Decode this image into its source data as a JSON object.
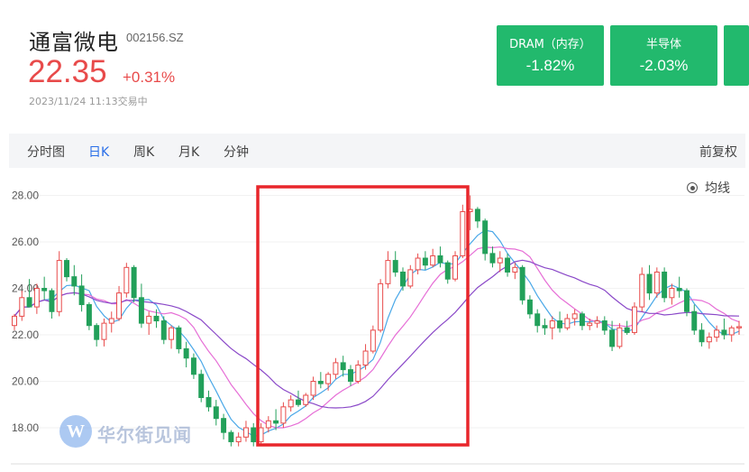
{
  "stock": {
    "name": "通富微电",
    "code": "002156.SZ",
    "price": "22.35",
    "change_pct": "+0.31%",
    "timestamp": "2023/11/24 11:13交易中"
  },
  "sectors": [
    {
      "label": "DRAM（内存）",
      "value": "-1.82%"
    },
    {
      "label": "半导体",
      "value": "-2.03%"
    }
  ],
  "tabs": [
    {
      "label": "分时图",
      "active": false
    },
    {
      "label": "日K",
      "active": true
    },
    {
      "label": "周K",
      "active": false
    },
    {
      "label": "月K",
      "active": false
    },
    {
      "label": "分钟",
      "active": false
    }
  ],
  "adjust_label": "前复权",
  "legend_label": "均线",
  "watermark_text": "华尔街见闻",
  "colors": {
    "up": "#e84a4a",
    "down": "#22a05a",
    "accent": "#2a6fe8",
    "sector_bg": "#22b96d",
    "highlight": "#e8262b"
  },
  "chart_data": {
    "type": "candlestick",
    "ylim": [
      17.0,
      28.5
    ],
    "yticks": [
      "28.00",
      "26.00",
      "24.00",
      "22.00",
      "20.00",
      "18.00"
    ],
    "candles": [
      [
        22.4,
        22.9,
        22.2,
        22.8
      ],
      [
        22.8,
        23.9,
        22.6,
        23.6
      ],
      [
        23.6,
        24.4,
        23.2,
        23.2
      ],
      [
        23.2,
        24.2,
        22.9,
        24.0
      ],
      [
        24.0,
        24.5,
        23.5,
        23.9
      ],
      [
        23.9,
        24.0,
        22.7,
        23.0
      ],
      [
        23.0,
        25.6,
        22.8,
        25.2
      ],
      [
        25.2,
        25.3,
        24.3,
        24.5
      ],
      [
        24.5,
        25.0,
        23.7,
        24.1
      ],
      [
        24.1,
        24.6,
        23.0,
        23.3
      ],
      [
        23.3,
        23.4,
        22.2,
        22.4
      ],
      [
        22.4,
        22.5,
        21.5,
        21.8
      ],
      [
        21.8,
        22.7,
        21.5,
        22.5
      ],
      [
        22.5,
        23.0,
        22.1,
        22.7
      ],
      [
        22.7,
        24.1,
        22.6,
        23.8
      ],
      [
        23.8,
        25.1,
        23.6,
        24.9
      ],
      [
        24.9,
        25.0,
        23.4,
        23.6
      ],
      [
        23.6,
        24.2,
        22.3,
        22.5
      ],
      [
        22.5,
        23.0,
        22.0,
        22.8
      ],
      [
        22.8,
        23.1,
        22.3,
        22.6
      ],
      [
        22.6,
        22.8,
        21.6,
        21.8
      ],
      [
        21.8,
        22.4,
        21.4,
        22.3
      ],
      [
        22.3,
        22.4,
        21.2,
        21.4
      ],
      [
        21.4,
        21.7,
        20.6,
        21.0
      ],
      [
        21.0,
        21.2,
        20.1,
        20.3
      ],
      [
        20.3,
        20.5,
        19.1,
        19.3
      ],
      [
        19.3,
        19.6,
        18.7,
        18.9
      ],
      [
        18.9,
        19.2,
        18.1,
        18.4
      ],
      [
        18.4,
        18.6,
        17.5,
        17.8
      ],
      [
        17.8,
        17.9,
        17.2,
        17.4
      ],
      [
        17.4,
        17.8,
        17.2,
        17.6
      ],
      [
        17.6,
        18.3,
        17.4,
        18.0
      ],
      [
        18.0,
        18.2,
        17.2,
        17.4
      ],
      [
        17.4,
        18.2,
        17.3,
        18.0
      ],
      [
        18.0,
        18.5,
        17.8,
        18.3
      ],
      [
        18.3,
        18.8,
        17.9,
        18.2
      ],
      [
        18.2,
        19.1,
        18.0,
        18.9
      ],
      [
        18.9,
        19.4,
        18.7,
        19.2
      ],
      [
        19.2,
        19.6,
        18.9,
        19.0
      ],
      [
        19.0,
        19.5,
        18.9,
        19.4
      ],
      [
        19.4,
        20.2,
        19.2,
        20.0
      ],
      [
        20.0,
        20.4,
        19.7,
        19.9
      ],
      [
        19.9,
        20.4,
        19.6,
        20.3
      ],
      [
        20.3,
        21.0,
        20.1,
        20.8
      ],
      [
        20.8,
        21.1,
        20.2,
        20.5
      ],
      [
        20.5,
        20.7,
        19.8,
        20.0
      ],
      [
        20.0,
        20.9,
        19.9,
        20.7
      ],
      [
        20.7,
        21.6,
        20.5,
        21.3
      ],
      [
        21.3,
        22.4,
        21.2,
        22.2
      ],
      [
        22.2,
        24.4,
        22.1,
        24.2
      ],
      [
        24.2,
        25.6,
        24.0,
        25.2
      ],
      [
        25.2,
        25.6,
        24.5,
        24.7
      ],
      [
        24.7,
        24.9,
        23.9,
        24.1
      ],
      [
        24.1,
        25.0,
        24.0,
        24.8
      ],
      [
        24.8,
        25.5,
        24.6,
        25.3
      ],
      [
        25.3,
        25.6,
        24.8,
        25.0
      ],
      [
        25.0,
        25.7,
        24.9,
        25.4
      ],
      [
        25.4,
        25.8,
        24.9,
        25.1
      ],
      [
        25.1,
        25.2,
        24.2,
        24.4
      ],
      [
        24.4,
        25.6,
        24.3,
        25.4
      ],
      [
        25.4,
        27.6,
        25.3,
        27.3
      ],
      [
        27.3,
        28.0,
        26.5,
        27.4
      ],
      [
        27.4,
        27.5,
        26.6,
        26.9
      ],
      [
        26.9,
        27.0,
        25.2,
        25.5
      ],
      [
        25.5,
        25.8,
        24.9,
        25.1
      ],
      [
        25.1,
        25.6,
        24.7,
        25.3
      ],
      [
        25.3,
        25.5,
        24.5,
        24.7
      ],
      [
        24.7,
        25.1,
        24.4,
        24.9
      ],
      [
        24.9,
        25.0,
        23.3,
        23.5
      ],
      [
        23.5,
        23.7,
        22.7,
        22.9
      ],
      [
        22.9,
        23.1,
        22.1,
        22.4
      ],
      [
        22.4,
        22.7,
        22.0,
        22.3
      ],
      [
        22.3,
        22.8,
        21.8,
        22.6
      ],
      [
        22.6,
        23.0,
        22.1,
        22.3
      ],
      [
        22.3,
        22.9,
        22.2,
        22.7
      ],
      [
        22.7,
        23.1,
        22.4,
        22.9
      ],
      [
        22.9,
        23.0,
        22.2,
        22.4
      ],
      [
        22.4,
        22.7,
        22.2,
        22.5
      ],
      [
        22.5,
        22.8,
        22.3,
        22.6
      ],
      [
        22.6,
        22.8,
        22.0,
        22.2
      ],
      [
        22.2,
        22.6,
        21.3,
        21.5
      ],
      [
        21.5,
        22.5,
        21.4,
        22.3
      ],
      [
        22.3,
        22.6,
        22.0,
        22.1
      ],
      [
        22.1,
        23.4,
        22.0,
        23.2
      ],
      [
        23.2,
        24.9,
        23.0,
        24.6
      ],
      [
        24.6,
        25.0,
        23.5,
        23.8
      ],
      [
        23.8,
        24.9,
        23.6,
        24.7
      ],
      [
        24.7,
        24.9,
        23.4,
        23.6
      ],
      [
        23.6,
        24.2,
        23.3,
        24.0
      ],
      [
        24.0,
        24.5,
        23.6,
        23.9
      ],
      [
        23.9,
        24.0,
        22.8,
        23.0
      ],
      [
        23.0,
        23.3,
        22.0,
        22.2
      ],
      [
        22.2,
        22.5,
        21.5,
        21.7
      ],
      [
        21.7,
        22.1,
        21.4,
        21.9
      ],
      [
        21.9,
        22.4,
        21.7,
        22.2
      ],
      [
        22.2,
        22.7,
        21.8,
        22.0
      ],
      [
        22.0,
        22.4,
        21.7,
        22.3
      ],
      [
        22.3,
        22.6,
        22.0,
        22.35
      ]
    ],
    "note": "candles are [open, high, low, close]; red = up, green = down"
  }
}
